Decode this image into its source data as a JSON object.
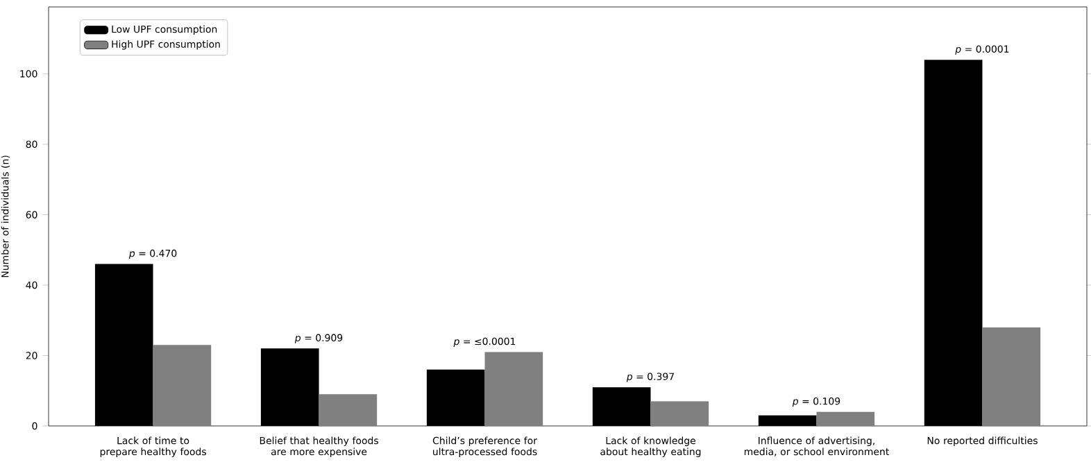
{
  "chart_data": {
    "type": "bar",
    "ylabel": "Number of individuals (n)",
    "categories": [
      "Lack of time to prepare healthy foods",
      "Belief that healthy foods are more expensive",
      "Child’s preference for ultra-processed foods",
      "Lack of knowledge about healthy eating",
      "Influence of advertising, media, or school environment",
      "No reported difficulties"
    ],
    "series": [
      {
        "name": "Low UPF consumption",
        "color": "#000000",
        "values": [
          46,
          22,
          16,
          11,
          3,
          104
        ]
      },
      {
        "name": "High UPF consumption",
        "color": "#808080",
        "values": [
          23,
          9,
          21,
          7,
          4,
          28
        ]
      }
    ],
    "ylim": [
      0,
      119
    ],
    "yticks": [
      0,
      20,
      40,
      60,
      80,
      100
    ],
    "legend": "top left",
    "annotations": [
      {
        "text": "*p* = 0.470",
        "x": "Lack of time to prepare healthy foods",
        "y": 47
      },
      {
        "text": "*p* = 0.909",
        "x": "Belief that healthy foods are more expensive",
        "y": 23
      },
      {
        "text": "*p* = ≤0.0001",
        "x": "Child’s preference for ultra-processed foods",
        "y": 22
      },
      {
        "text": "*p* = 0.397",
        "x": "Lack of knowledge about healthy eating",
        "y": 12
      },
      {
        "text": "*p* = 0.109",
        "x": "Influence of advertising, media, or school environment",
        "y": 5
      },
      {
        "text": "*p* = 0.0001",
        "x": "No reported difficulties",
        "y": 105
      }
    ]
  }
}
